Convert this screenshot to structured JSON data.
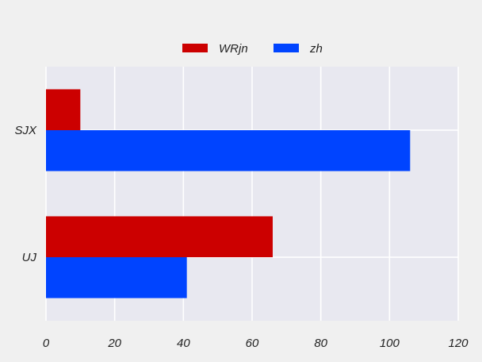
{
  "chart_data": {
    "type": "bar",
    "orientation": "horizontal",
    "categories": [
      "SJX",
      "UJ"
    ],
    "series": [
      {
        "name": "WRjn",
        "values": [
          10,
          66
        ],
        "color": "#cc0000"
      },
      {
        "name": "zh",
        "values": [
          106,
          41
        ],
        "color": "#0044ff"
      }
    ],
    "xlim": [
      0,
      120
    ],
    "xticks": [
      0,
      20,
      40,
      60,
      80,
      100,
      120
    ],
    "title": "",
    "xlabel": "",
    "ylabel": "",
    "grid": true,
    "legend_position": "top-center",
    "plot_background": "#e8e8f0",
    "grid_color": "#ffffff"
  }
}
